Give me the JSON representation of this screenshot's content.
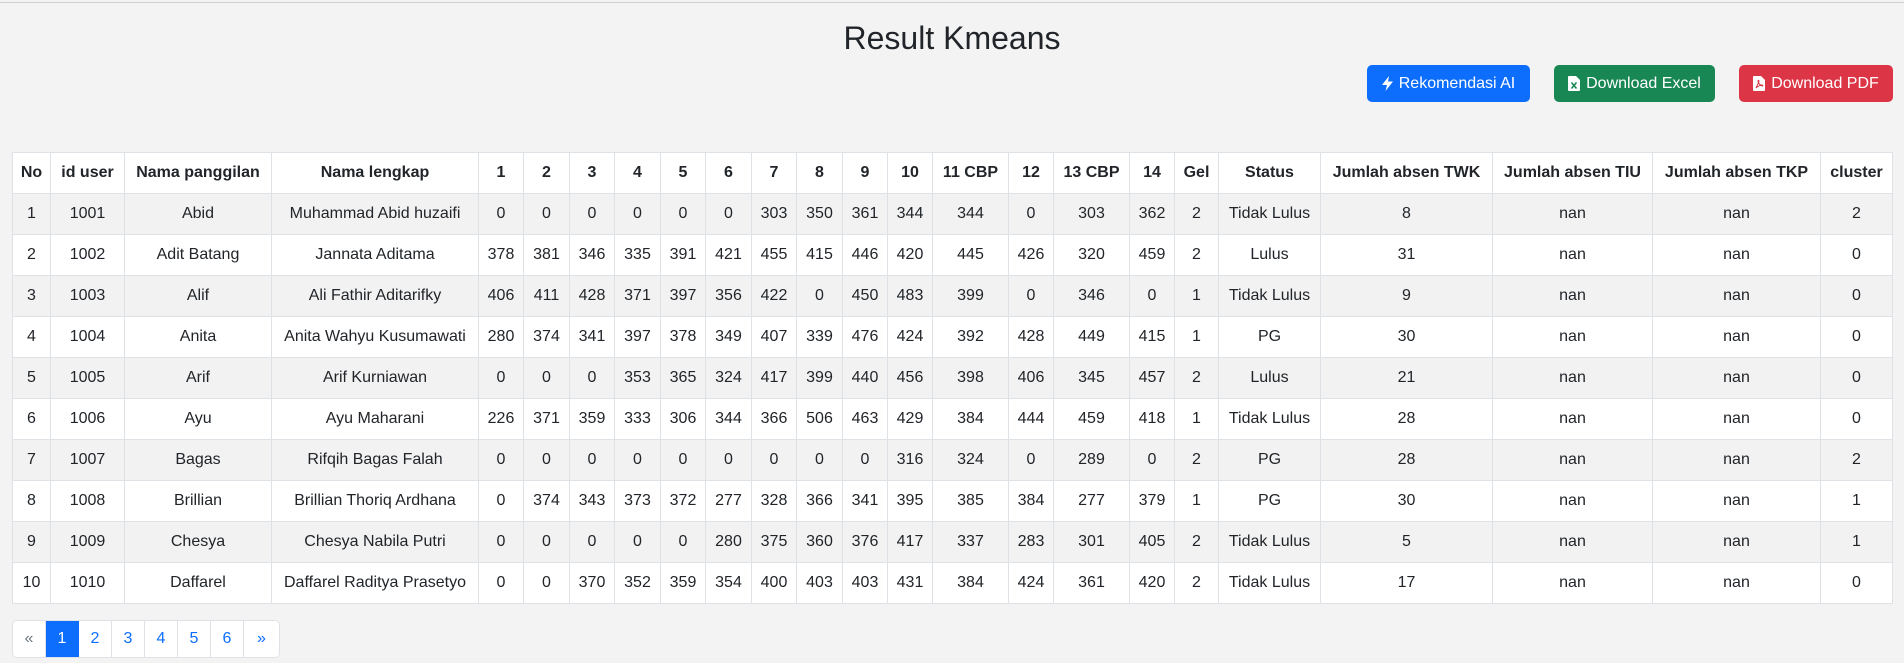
{
  "title": "Result Kmeans",
  "buttons": {
    "ai": {
      "label": "Rekomendasi AI",
      "icon": "lightning-icon",
      "color": "#0d6efd"
    },
    "excel": {
      "label": "Download Excel",
      "icon": "file-excel-icon",
      "color": "#198754"
    },
    "pdf": {
      "label": "Download PDF",
      "icon": "file-pdf-icon",
      "color": "#dc3545"
    }
  },
  "table": {
    "columns": [
      "No",
      "id user",
      "Nama panggilan",
      "Nama lengkap",
      "1",
      "2",
      "3",
      "4",
      "5",
      "6",
      "7",
      "8",
      "9",
      "10",
      "11 CBP",
      "12",
      "13 CBP",
      "14",
      "Gel",
      "Status",
      "Jumlah absen TWK",
      "Jumlah absen TIU",
      "Jumlah absen TKP",
      "cluster"
    ],
    "rows": [
      [
        "1",
        "1001",
        "Abid",
        "Muhammad Abid huzaifi",
        "0",
        "0",
        "0",
        "0",
        "0",
        "0",
        "303",
        "350",
        "361",
        "344",
        "344",
        "0",
        "303",
        "362",
        "2",
        "Tidak Lulus",
        "8",
        "nan",
        "nan",
        "2"
      ],
      [
        "2",
        "1002",
        "Adit Batang",
        "Jannata Aditama",
        "378",
        "381",
        "346",
        "335",
        "391",
        "421",
        "455",
        "415",
        "446",
        "420",
        "445",
        "426",
        "320",
        "459",
        "2",
        "Lulus",
        "31",
        "nan",
        "nan",
        "0"
      ],
      [
        "3",
        "1003",
        "Alif",
        "Ali Fathir Aditarifky",
        "406",
        "411",
        "428",
        "371",
        "397",
        "356",
        "422",
        "0",
        "450",
        "483",
        "399",
        "0",
        "346",
        "0",
        "1",
        "Tidak Lulus",
        "9",
        "nan",
        "nan",
        "0"
      ],
      [
        "4",
        "1004",
        "Anita",
        "Anita Wahyu Kusumawati",
        "280",
        "374",
        "341",
        "397",
        "378",
        "349",
        "407",
        "339",
        "476",
        "424",
        "392",
        "428",
        "449",
        "415",
        "1",
        "PG",
        "30",
        "nan",
        "nan",
        "0"
      ],
      [
        "5",
        "1005",
        "Arif",
        "Arif Kurniawan",
        "0",
        "0",
        "0",
        "353",
        "365",
        "324",
        "417",
        "399",
        "440",
        "456",
        "398",
        "406",
        "345",
        "457",
        "2",
        "Lulus",
        "21",
        "nan",
        "nan",
        "0"
      ],
      [
        "6",
        "1006",
        "Ayu",
        "Ayu Maharani",
        "226",
        "371",
        "359",
        "333",
        "306",
        "344",
        "366",
        "506",
        "463",
        "429",
        "384",
        "444",
        "459",
        "418",
        "1",
        "Tidak Lulus",
        "28",
        "nan",
        "nan",
        "0"
      ],
      [
        "7",
        "1007",
        "Bagas",
        "Rifqih Bagas Falah",
        "0",
        "0",
        "0",
        "0",
        "0",
        "0",
        "0",
        "0",
        "0",
        "316",
        "324",
        "0",
        "289",
        "0",
        "2",
        "PG",
        "28",
        "nan",
        "nan",
        "2"
      ],
      [
        "8",
        "1008",
        "Brillian",
        "Brillian Thoriq Ardhana",
        "0",
        "374",
        "343",
        "373",
        "372",
        "277",
        "328",
        "366",
        "341",
        "395",
        "385",
        "384",
        "277",
        "379",
        "1",
        "PG",
        "30",
        "nan",
        "nan",
        "1"
      ],
      [
        "9",
        "1009",
        "Chesya",
        "Chesya Nabila Putri",
        "0",
        "0",
        "0",
        "0",
        "0",
        "280",
        "375",
        "360",
        "376",
        "417",
        "337",
        "283",
        "301",
        "405",
        "2",
        "Tidak Lulus",
        "5",
        "nan",
        "nan",
        "1"
      ],
      [
        "10",
        "1010",
        "Daffarel",
        "Daffarel Raditya Prasetyo",
        "0",
        "0",
        "370",
        "352",
        "359",
        "354",
        "400",
        "403",
        "403",
        "431",
        "384",
        "424",
        "361",
        "420",
        "2",
        "Tidak Lulus",
        "17",
        "nan",
        "nan",
        "0"
      ]
    ]
  },
  "pagination": {
    "prev": "«",
    "next": "»",
    "pages": [
      "1",
      "2",
      "3",
      "4",
      "5",
      "6"
    ],
    "active": "1"
  }
}
